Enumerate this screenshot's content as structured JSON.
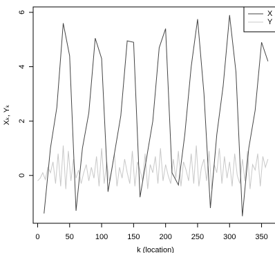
{
  "chart_data": {
    "type": "line",
    "x_label": "k (location)",
    "y_label": "Xₖ, Yₖ",
    "xlim": [
      -7,
      371
    ],
    "ylim": [
      -1.76,
      6.2
    ],
    "xticks": [
      0,
      50,
      100,
      150,
      200,
      250,
      300,
      350
    ],
    "yticks": [
      0,
      2,
      4,
      6
    ],
    "legend": "top-right",
    "series": [
      {
        "name": "X",
        "color": "#444444",
        "x": [
          10,
          20,
          30,
          40,
          50,
          60,
          70,
          80,
          90,
          100,
          110,
          120,
          130,
          140,
          150,
          160,
          170,
          180,
          190,
          200,
          210,
          220,
          230,
          240,
          250,
          260,
          270,
          280,
          290,
          300,
          310,
          320,
          330,
          340,
          350,
          360
        ],
        "values": [
          -1.4,
          1.0,
          2.5,
          5.6,
          4.4,
          -1.3,
          1.0,
          2.3,
          5.05,
          4.3,
          -0.6,
          0.8,
          2.2,
          4.95,
          4.9,
          -0.8,
          0.6,
          2.0,
          4.7,
          5.4,
          0.1,
          -0.35,
          1.5,
          4.0,
          5.75,
          3.0,
          -1.2,
          1.5,
          3.3,
          5.9,
          3.8,
          -1.5,
          1.0,
          2.4,
          4.9,
          4.2
        ]
      },
      {
        "name": "Y",
        "color": "#c8c8c8",
        "x": [
          0,
          4,
          8,
          12,
          16,
          20,
          24,
          28,
          32,
          36,
          40,
          44,
          48,
          52,
          56,
          60,
          64,
          68,
          72,
          76,
          80,
          84,
          88,
          92,
          96,
          100,
          104,
          108,
          112,
          116,
          120,
          124,
          128,
          132,
          136,
          140,
          144,
          148,
          152,
          156,
          160,
          164,
          168,
          172,
          176,
          180,
          184,
          188,
          192,
          196,
          200,
          204,
          208,
          212,
          216,
          220,
          224,
          228,
          232,
          236,
          240,
          244,
          248,
          252,
          256,
          260,
          264,
          268,
          272,
          276,
          280,
          284,
          288,
          292,
          296,
          300,
          304,
          308,
          312,
          316,
          320,
          324,
          328,
          332,
          336,
          340,
          344,
          348,
          352,
          356,
          360
        ],
        "values": [
          -0.2,
          -0.1,
          0.1,
          -0.15,
          0.3,
          0.1,
          0.5,
          -0.3,
          0.8,
          -0.4,
          1.1,
          -0.5,
          0.9,
          -0.2,
          0.6,
          -0.1,
          0.2,
          -0.3,
          0.1,
          0.4,
          -0.2,
          0.3,
          -0.1,
          0.7,
          -0.4,
          1.0,
          -0.3,
          0.5,
          -0.2,
          0.2,
          0.8,
          -0.4,
          0.3,
          -0.1,
          0.6,
          0.1,
          -0.3,
          0.9,
          -0.4,
          0.5,
          0.2,
          -0.2,
          0.8,
          -0.5,
          0.4,
          0.1,
          0.7,
          -0.3,
          1.0,
          -0.2,
          0.4,
          0.0,
          -0.3,
          0.6,
          -0.1,
          0.9,
          -0.4,
          0.5,
          0.2,
          -0.2,
          0.8,
          -0.3,
          1.1,
          -0.4,
          0.3,
          0.6,
          -0.2,
          0.9,
          -0.5,
          0.4,
          0.1,
          1.0,
          -0.3,
          0.7,
          -0.1,
          0.5,
          -0.4,
          0.8,
          0.0,
          -0.3,
          0.6,
          -0.2,
          0.9,
          -0.5,
          0.4,
          0.2,
          0.8,
          -0.4,
          0.7,
          0.3,
          0.6
        ]
      }
    ]
  }
}
